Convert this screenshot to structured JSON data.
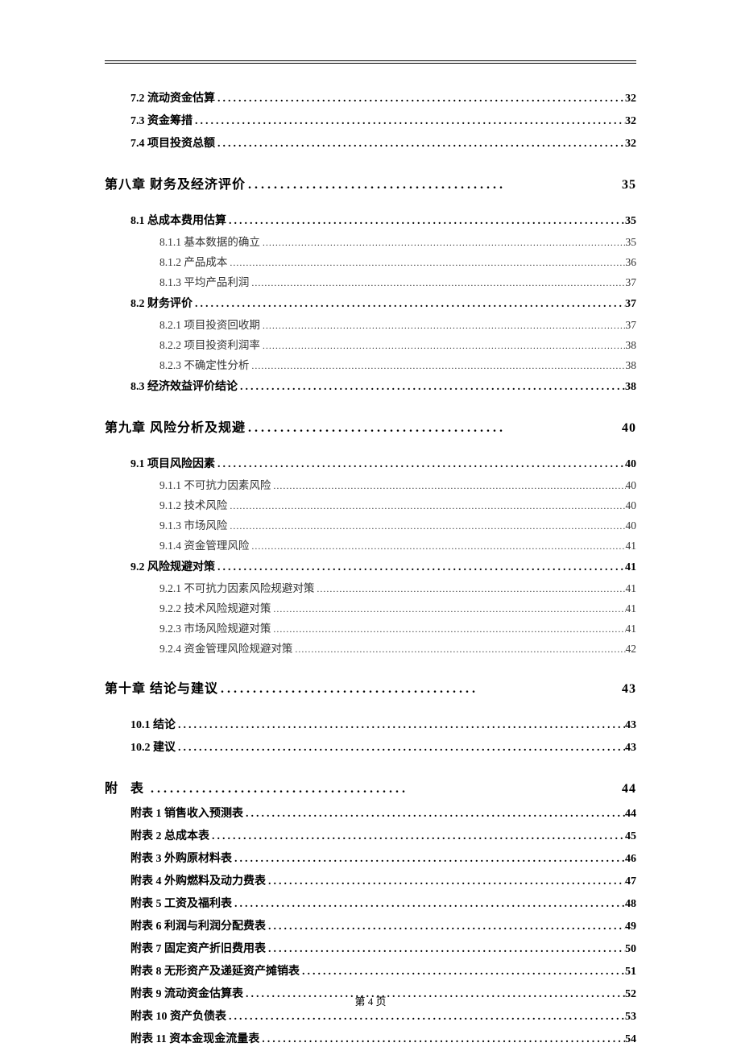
{
  "footer": "第 4 页",
  "dots_heavy": "........................................",
  "dots_medium": "......................................................................................",
  "dots_light": "..........................................................................................................................................",
  "entries": [
    {
      "level": 2,
      "label": "7.2 流动资金估算",
      "page": "32"
    },
    {
      "level": 2,
      "label": "7.3 资金筹措",
      "page": "32"
    },
    {
      "level": 2,
      "label": "7.4 项目投资总额",
      "page": "32"
    },
    {
      "level": 1,
      "label": "第八章  财务及经济评价",
      "page": "35"
    },
    {
      "level": 2,
      "label": "8.1 总成本费用估算",
      "page": "35"
    },
    {
      "level": 3,
      "label": "8.1.1 基本数据的确立",
      "page": "35"
    },
    {
      "level": 3,
      "label": "8.1.2 产品成本",
      "page": "36"
    },
    {
      "level": 3,
      "label": "8.1.3 平均产品利润",
      "page": "37"
    },
    {
      "level": 2,
      "label": "8.2 财务评价",
      "page": "37"
    },
    {
      "level": 3,
      "label": "8.2.1 项目投资回收期",
      "page": "37"
    },
    {
      "level": 3,
      "label": "8.2.2 项目投资利润率",
      "page": "38"
    },
    {
      "level": 3,
      "label": "8.2.3 不确定性分析",
      "page": "38"
    },
    {
      "level": 2,
      "label": "8.3 经济效益评价结论",
      "page": "38"
    },
    {
      "level": 1,
      "label": "第九章  风险分析及规避",
      "page": "40"
    },
    {
      "level": 2,
      "label": "9.1 项目风险因素",
      "page": "40"
    },
    {
      "level": 3,
      "label": "9.1.1 不可抗力因素风险",
      "page": "40"
    },
    {
      "level": 3,
      "label": "9.1.2 技术风险",
      "page": "40"
    },
    {
      "level": 3,
      "label": "9.1.3 市场风险",
      "page": "40"
    },
    {
      "level": 3,
      "label": "9.1.4 资金管理风险",
      "page": "41"
    },
    {
      "level": 2,
      "label": "9.2 风险规避对策",
      "page": "41"
    },
    {
      "level": 3,
      "label": "9.2.1 不可抗力因素风险规避对策",
      "page": "41"
    },
    {
      "level": 3,
      "label": "9.2.2 技术风险规避对策",
      "page": "41"
    },
    {
      "level": 3,
      "label": "9.2.3 市场风险规避对策",
      "page": "41"
    },
    {
      "level": 3,
      "label": "9.2.4 资金管理风险规避对策",
      "page": "42"
    },
    {
      "level": 1,
      "label": "第十章  结论与建议",
      "page": "43"
    },
    {
      "level": 2,
      "label": "10.1 结论",
      "page": "43"
    },
    {
      "level": 2,
      "label": "10.2 建议",
      "page": "43"
    },
    {
      "level": 1,
      "label": "附  表",
      "page": "44",
      "spaced": true,
      "tight": true
    },
    {
      "level": 2,
      "label": "附表 1  销售收入预测表",
      "page": "44"
    },
    {
      "level": 2,
      "label": "附表 2  总成本表",
      "page": "45"
    },
    {
      "level": 2,
      "label": "附表 3  外购原材料表",
      "page": "46"
    },
    {
      "level": 2,
      "label": "附表 4  外购燃料及动力费表",
      "page": "47"
    },
    {
      "level": 2,
      "label": "附表 5  工资及福利表",
      "page": "48"
    },
    {
      "level": 2,
      "label": "附表 6  利润与利润分配费表",
      "page": "49"
    },
    {
      "level": 2,
      "label": "附表 7  固定资产折旧费用表",
      "page": "50"
    },
    {
      "level": 2,
      "label": "附表 8  无形资产及递延资产摊销表",
      "page": "51"
    },
    {
      "level": 2,
      "label": "附表 9  流动资金估算表",
      "page": "52"
    },
    {
      "level": 2,
      "label": "附表 10  资产负债表",
      "page": "53"
    },
    {
      "level": 2,
      "label": "附表 11  资本金现金流量表",
      "page": "54"
    }
  ]
}
